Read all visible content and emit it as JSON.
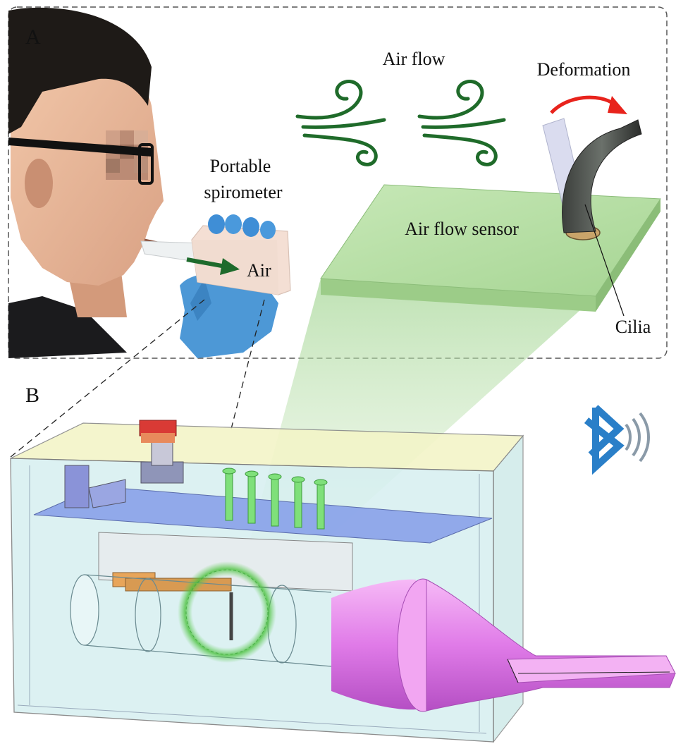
{
  "panel_a": {
    "letter": "A",
    "label_portable_line1": "Portable",
    "label_portable_line2": "spirometer",
    "label_air": "Air",
    "label_air_flow": "Air flow",
    "label_deformation": "Deformation",
    "label_sensor": "Air flow sensor",
    "label_cilia": "Cilia"
  },
  "panel_b": {
    "letter": "B"
  },
  "colors": {
    "air_swirl": "#1f6b2a",
    "air_arrow": "#1e6b2c",
    "deformation_arrow": "#e8231c",
    "sensor_plate": "#b7dfa5",
    "bluetooth": "#2a7fc8",
    "mouthpiece": "#e07be8",
    "enclosure": "#c9ecec",
    "glove": "#4d98d6",
    "cap": "#d93a35"
  },
  "icons": {
    "bluetooth": "bluetooth-icon",
    "air_flow": "wind-icon",
    "deformation": "curved-arrow-icon"
  }
}
